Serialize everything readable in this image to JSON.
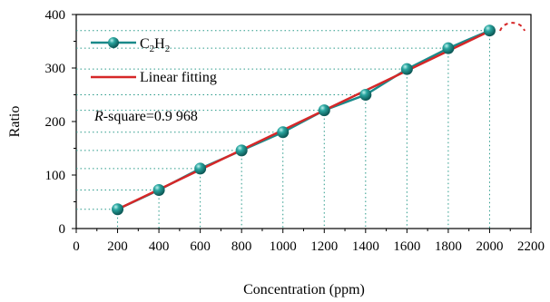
{
  "chart_data": {
    "type": "line",
    "title": "",
    "xlabel": "Concentration (ppm)",
    "ylabel": "Ratio",
    "xlim": [
      0,
      2200
    ],
    "ylim": [
      0,
      400
    ],
    "xticks": [
      0,
      200,
      400,
      600,
      800,
      1000,
      1200,
      1400,
      1600,
      1800,
      2000,
      2200
    ],
    "yticks": [
      0,
      100,
      200,
      300,
      400
    ],
    "x": [
      200,
      400,
      600,
      800,
      1000,
      1200,
      1400,
      1600,
      1800,
      2000
    ],
    "series": [
      {
        "name": "C2H2",
        "name_main": "C",
        "name_sub1": "2",
        "name_mid": "H",
        "name_sub2": "2",
        "values": [
          36,
          72,
          112,
          146,
          180,
          221,
          250,
          298,
          337,
          370
        ],
        "color": "#1a8a8a",
        "marker": "sphere"
      },
      {
        "name": "Linear fitting",
        "x": [
          200,
          2000
        ],
        "values": [
          36,
          369
        ],
        "color": "#d62728"
      }
    ],
    "annotation": {
      "r_italic": "R",
      "rest": "-square=0.9 968"
    },
    "guide_lines": true,
    "legend_position": "top-left"
  }
}
